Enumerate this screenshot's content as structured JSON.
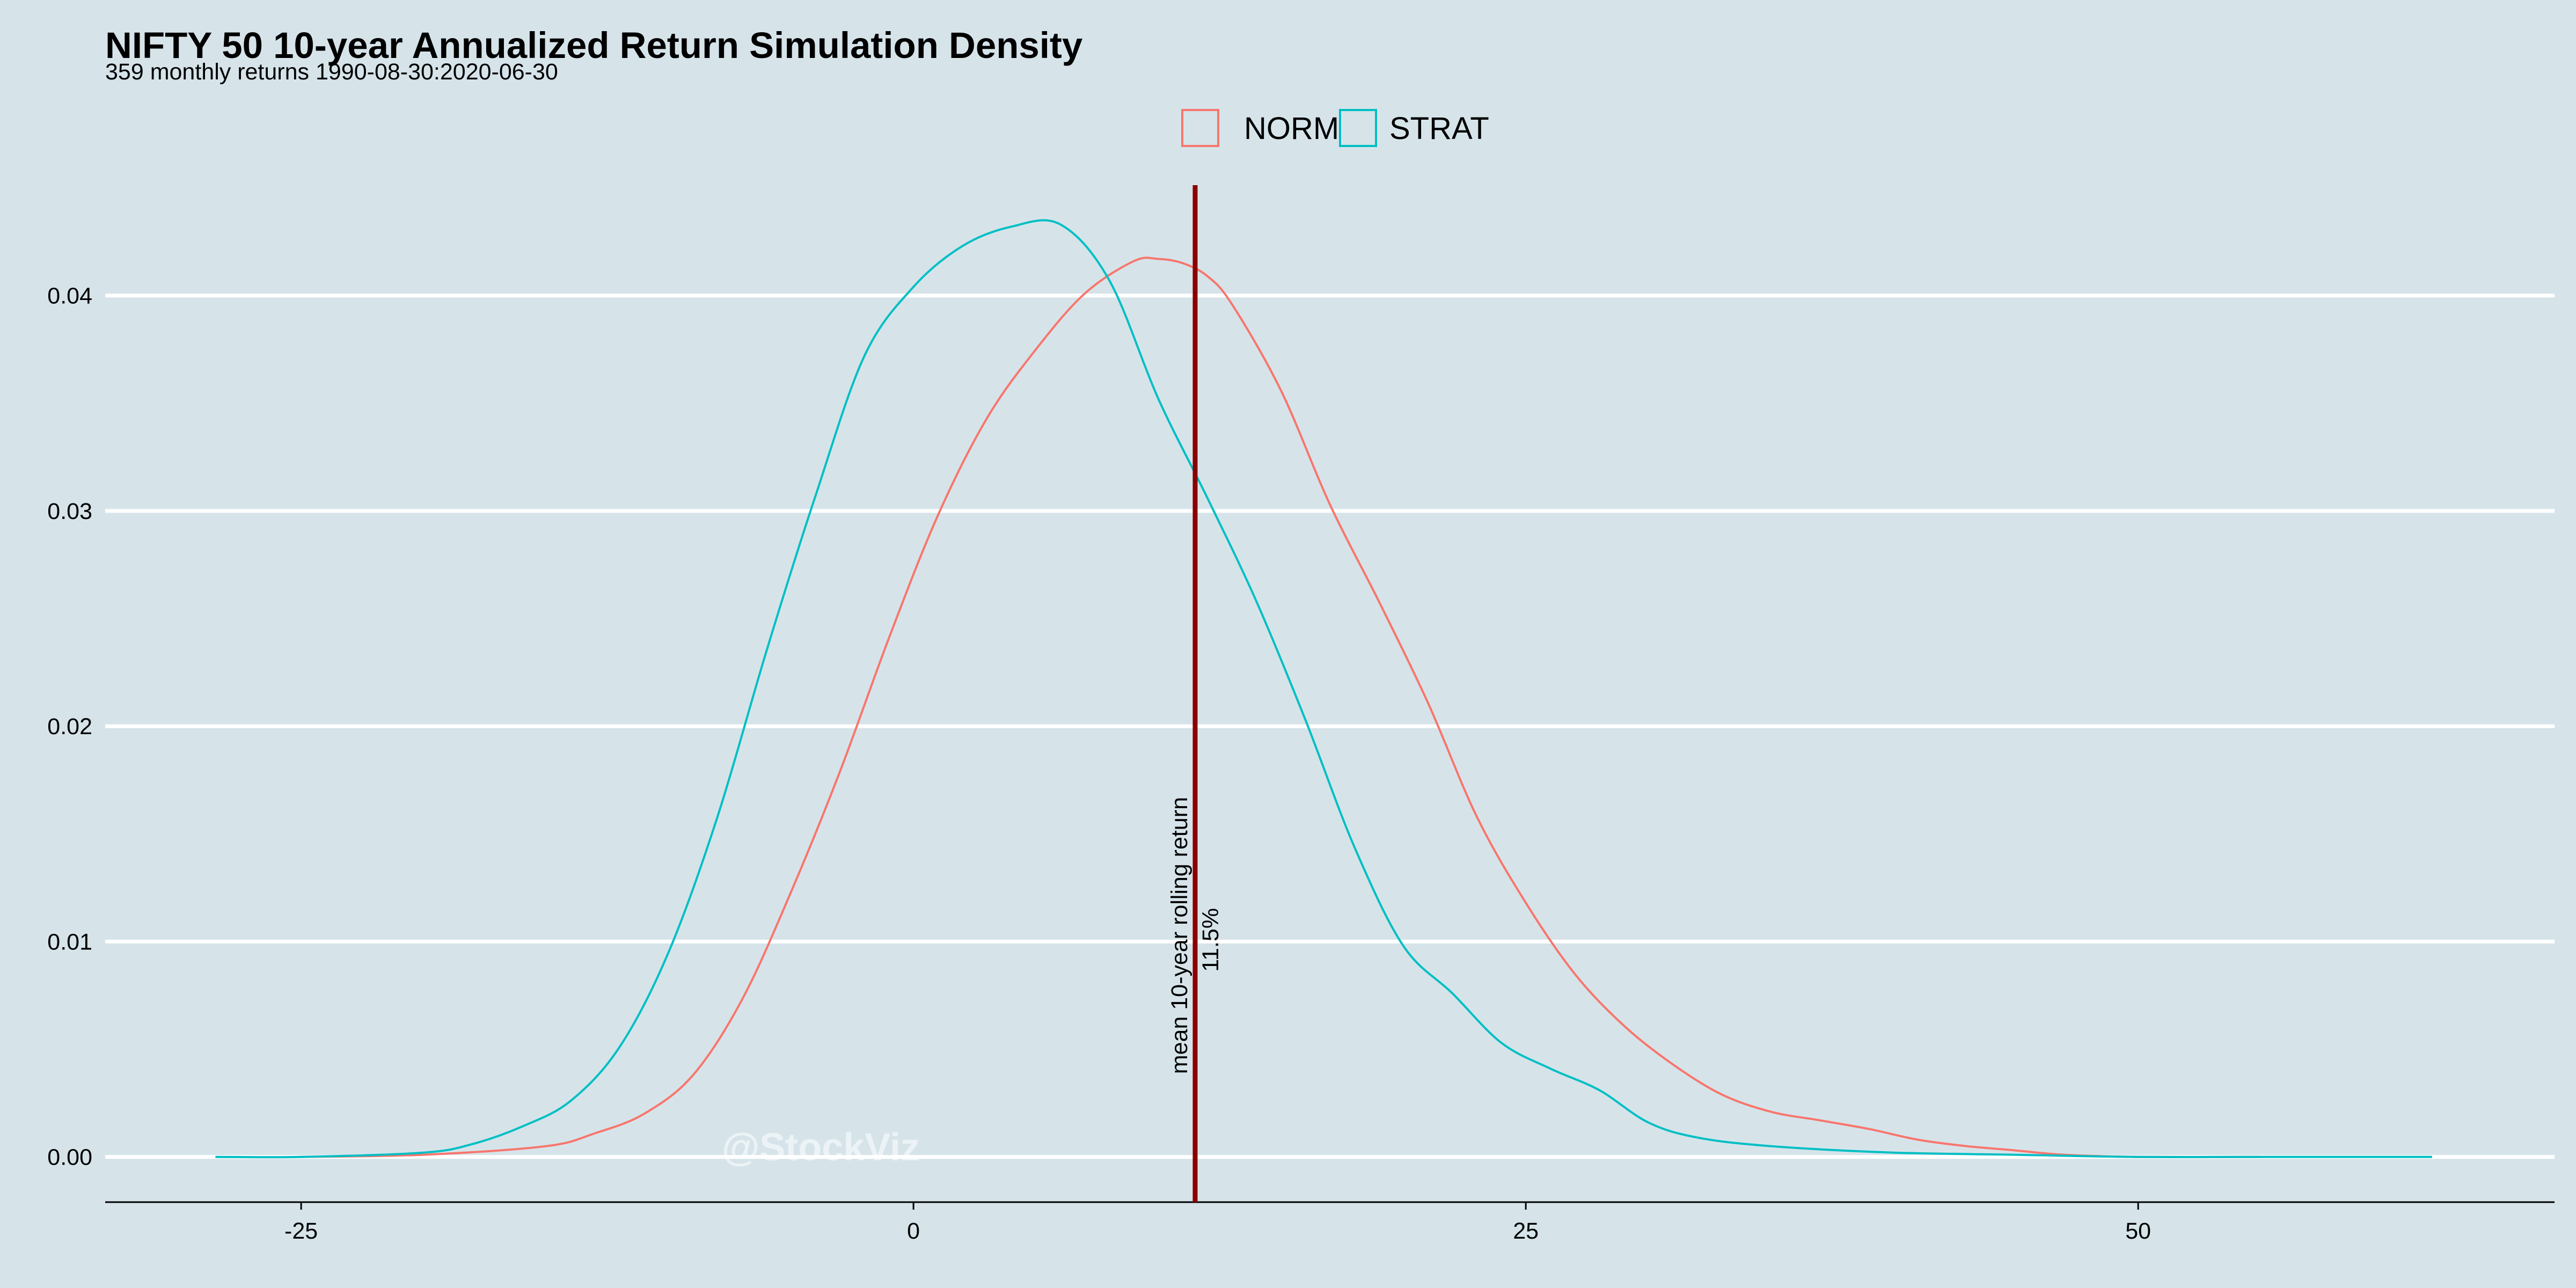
{
  "chart_data": {
    "type": "line",
    "title": "NIFTY 50 10-year Annualized Return Simulation Density",
    "subtitle": "359 monthly returns 1990-08-30:2020-06-30",
    "xlabel": "",
    "ylabel": "",
    "xlim": [
      -33,
      67
    ],
    "ylim": [
      -0.0021,
      0.0455
    ],
    "x_ticks": [
      -25,
      0,
      25,
      50
    ],
    "x_tick_labels": [
      "-25",
      "0",
      "25",
      "50"
    ],
    "y_ticks": [
      0.0,
      0.01,
      0.02,
      0.03,
      0.04
    ],
    "y_tick_labels": [
      "0.00",
      "0.01",
      "0.02",
      "0.03",
      "0.04"
    ],
    "grid": "horizontal major lines, white",
    "legend_position": "top-center",
    "series": [
      {
        "name": "NORM",
        "color": "#f8766d",
        "x": [
          -25,
          -20,
          -15,
          -13,
          -11,
          -9,
          -7,
          -5,
          -3,
          -1,
          1,
          3,
          5,
          7,
          9,
          10,
          11,
          12,
          13,
          15,
          17,
          19,
          21,
          23,
          25,
          27,
          29,
          31,
          33,
          35,
          37,
          39,
          41,
          43,
          45,
          47,
          50,
          55
        ],
        "y": [
          0.0,
          0.0001,
          0.0005,
          0.0011,
          0.002,
          0.0038,
          0.0073,
          0.0123,
          0.0179,
          0.0241,
          0.0298,
          0.0343,
          0.0375,
          0.0401,
          0.0416,
          0.0417,
          0.0415,
          0.0409,
          0.0396,
          0.0356,
          0.0303,
          0.0258,
          0.0211,
          0.0158,
          0.0118,
          0.0085,
          0.0061,
          0.0043,
          0.0029,
          0.0021,
          0.0017,
          0.0013,
          0.0008,
          0.0005,
          0.0003,
          0.0001,
          0.0,
          0.0
        ]
      },
      {
        "name": "STRAT",
        "color": "#00bfc4",
        "x": [
          -28.5,
          -25,
          -20,
          -18,
          -16,
          -14,
          -12,
          -10,
          -8,
          -6,
          -4,
          -2,
          0,
          2,
          4,
          6,
          8,
          10,
          12,
          14,
          16,
          18,
          20,
          22,
          24,
          26,
          28,
          30,
          32,
          35,
          40,
          45,
          50,
          55,
          62
        ],
        "y": [
          0.0,
          0.0,
          0.0002,
          0.0006,
          0.0014,
          0.0026,
          0.0051,
          0.0095,
          0.0158,
          0.0235,
          0.0307,
          0.0372,
          0.0404,
          0.0423,
          0.0432,
          0.0433,
          0.0407,
          0.0352,
          0.0306,
          0.0258,
          0.0203,
          0.0144,
          0.0098,
          0.0076,
          0.0053,
          0.0041,
          0.0031,
          0.0016,
          0.0009,
          0.0005,
          0.0002,
          0.0001,
          0.0,
          0.0,
          0.0
        ]
      }
    ],
    "vline": {
      "x": 11.5,
      "color": "#8b0000",
      "label": "mean 10-year rolling return",
      "value_label": "11.5%"
    },
    "watermark": "@StockViz"
  }
}
